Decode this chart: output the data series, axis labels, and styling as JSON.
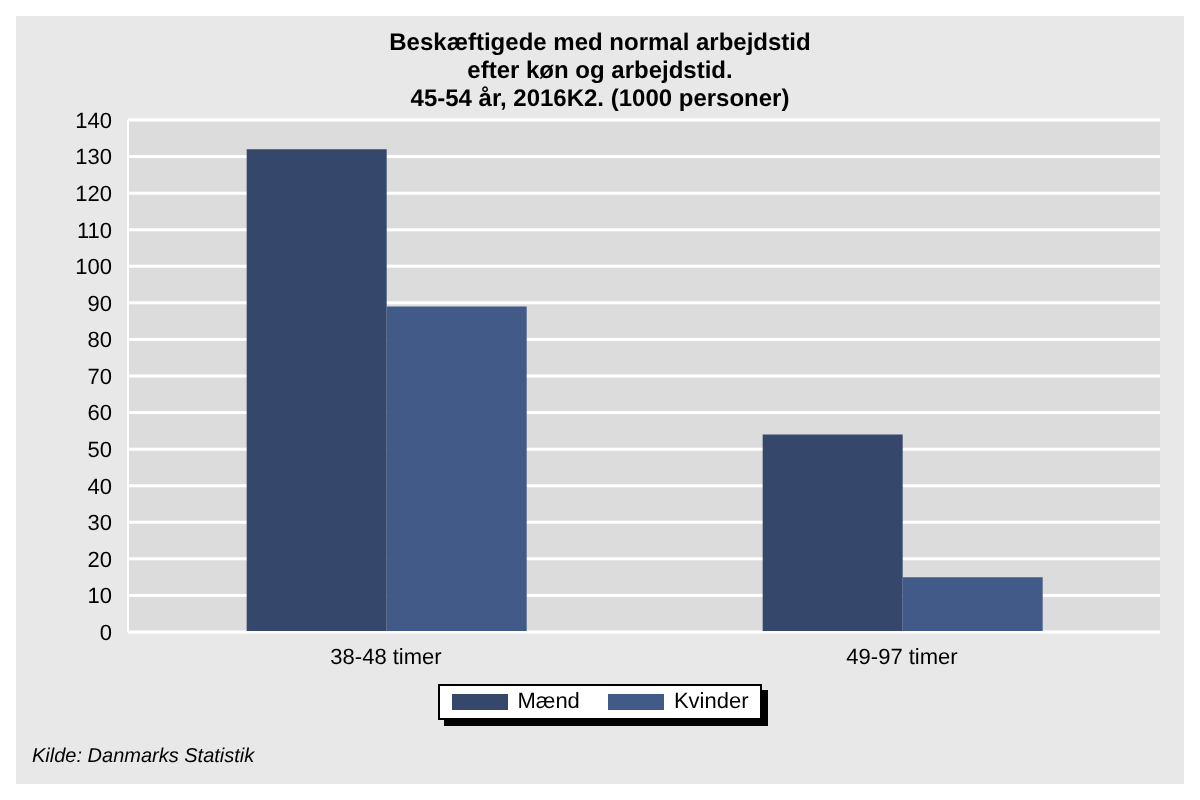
{
  "chart_data": {
    "type": "bar",
    "title": "Beskæftigede med normal arbejdstid\nefter køn og arbejdstid.\n45-54 år, 2016K2. (1000 personer)",
    "categories": [
      "38-48 timer",
      "49-97 timer"
    ],
    "series": [
      {
        "name": "Mænd",
        "color": "#35486b",
        "values": [
          132,
          54
        ]
      },
      {
        "name": "Kvinder",
        "color": "#415a87",
        "values": [
          89,
          15
        ]
      }
    ],
    "ylim": [
      0,
      140
    ],
    "yticks": [
      0,
      10,
      20,
      30,
      40,
      50,
      60,
      70,
      80,
      90,
      100,
      110,
      120,
      130,
      140
    ],
    "grid": "y",
    "legend": "bottom",
    "annotations": [
      "Kilde: Danmarks Statistik"
    ]
  }
}
